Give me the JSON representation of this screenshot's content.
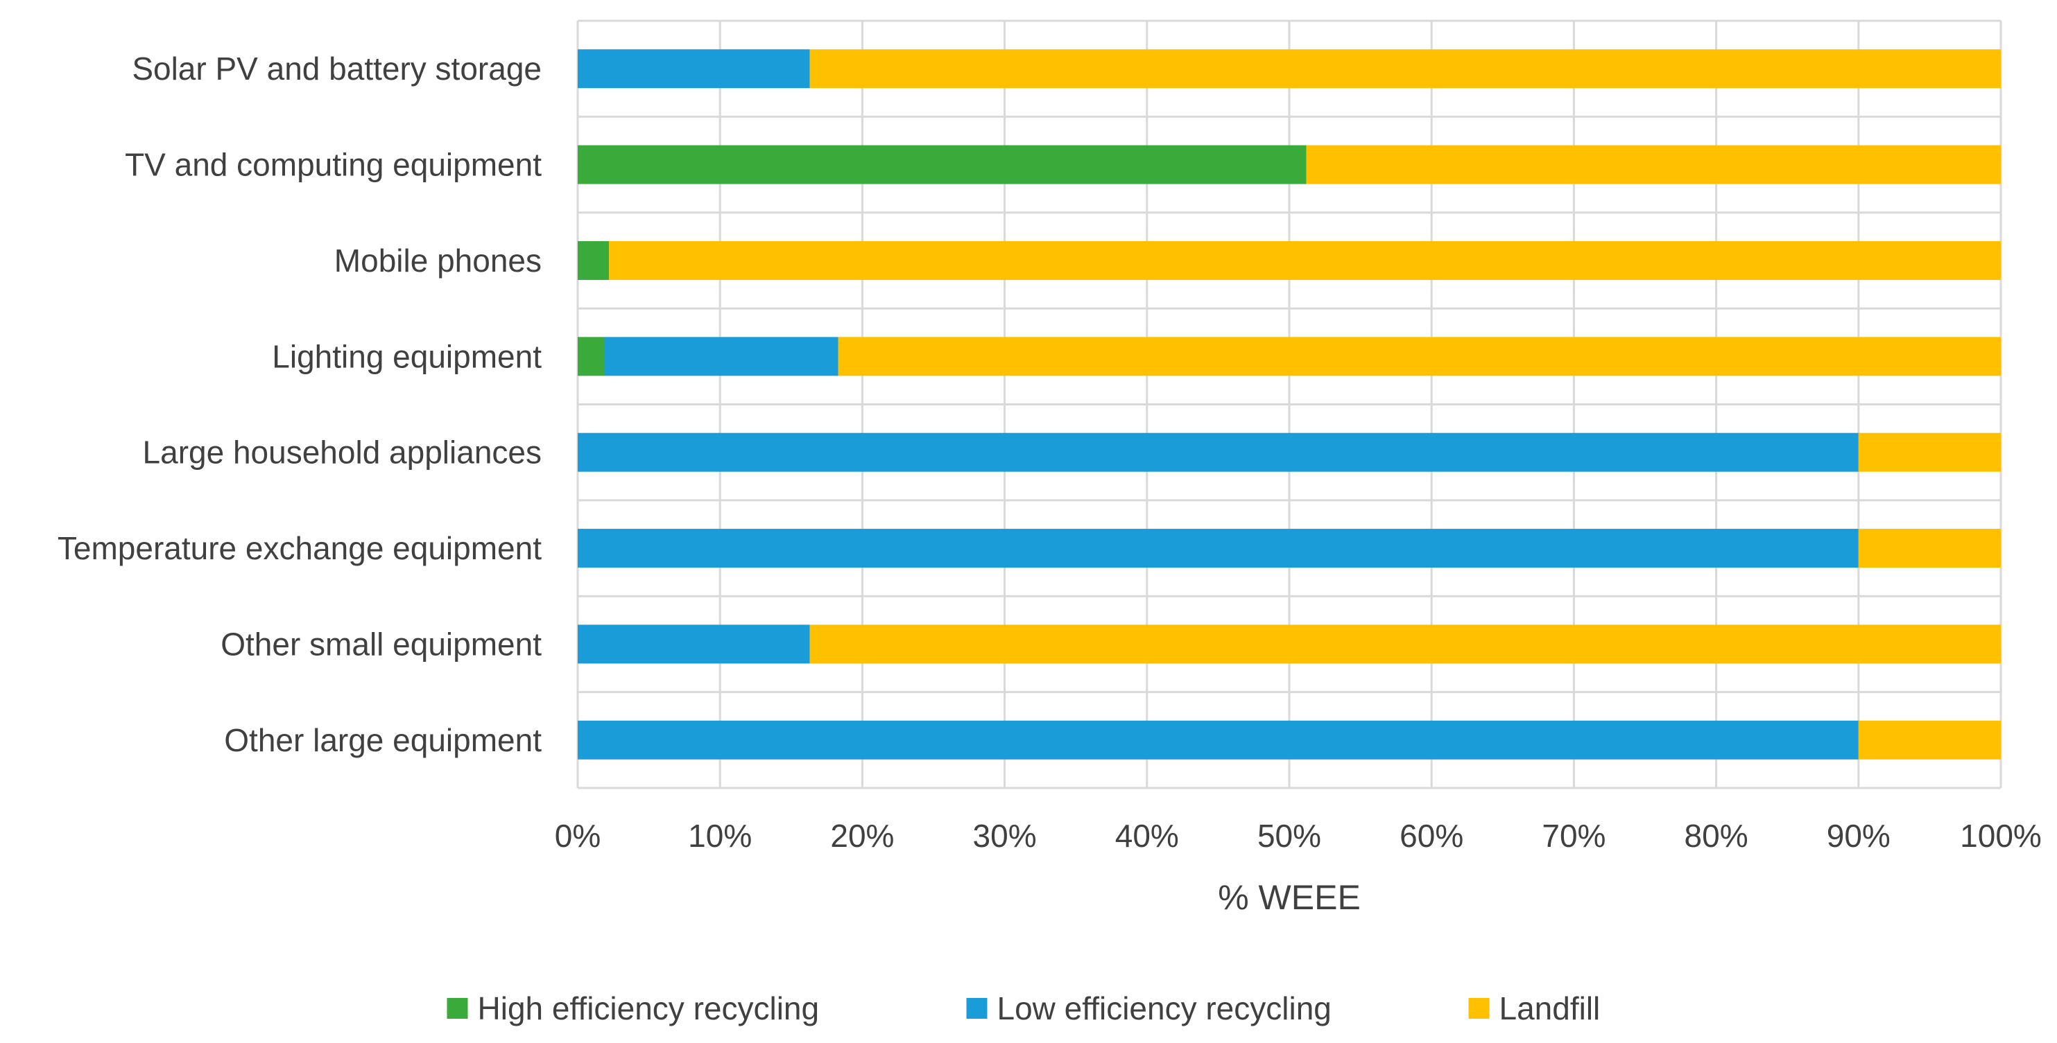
{
  "chart_data": {
    "type": "bar",
    "orientation": "horizontal",
    "stacked": true,
    "title": "",
    "xlabel": "% WEEE",
    "ylabel": "",
    "xlim": [
      0,
      100
    ],
    "x_ticks": [
      "0%",
      "10%",
      "20%",
      "30%",
      "40%",
      "50%",
      "60%",
      "70%",
      "80%",
      "90%",
      "100%"
    ],
    "grid": true,
    "legend_position": "bottom",
    "categories": [
      "Solar PV and battery storage",
      "TV and computing equipment",
      "Mobile phones",
      "Lighting equipment",
      "Large household appliances",
      "Temperature exchange equipment",
      "Other small equipment",
      "Other large equipment"
    ],
    "series": [
      {
        "name": "High efficiency recycling",
        "color": "#3aaa3a",
        "values": [
          0,
          51.2,
          2.2,
          1.9,
          0,
          0,
          0,
          0
        ]
      },
      {
        "name": "Low efficiency recycling",
        "color": "#1a9cd8",
        "values": [
          16.3,
          0,
          0,
          16.4,
          90,
          90,
          16.3,
          90
        ]
      },
      {
        "name": "Landfill",
        "color": "#ffc000",
        "values": [
          83.7,
          48.8,
          97.8,
          81.7,
          10,
          10,
          83.7,
          10
        ]
      }
    ]
  }
}
